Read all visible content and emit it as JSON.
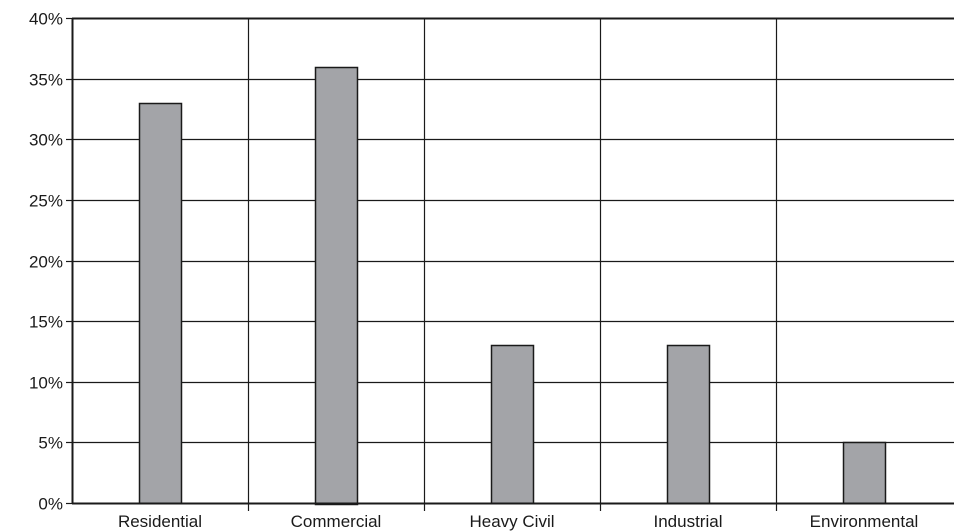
{
  "chart_data": {
    "type": "bar",
    "title": "",
    "xlabel": "",
    "ylabel": "",
    "categories": [
      "Residential",
      "Commercial",
      "Heavy Civil",
      "Industrial",
      "Environmental"
    ],
    "values": [
      33,
      36,
      13,
      13,
      5
    ],
    "value_unit": "%",
    "ylim": [
      0,
      40
    ],
    "yticks": [
      0,
      5,
      10,
      15,
      20,
      25,
      30,
      35,
      40
    ],
    "ytick_labels": [
      "0%",
      "5%",
      "10%",
      "15%",
      "20%",
      "25%",
      "30%",
      "35%",
      "40%"
    ],
    "grid": "horizontal lines at every tick, vertical separators between categories",
    "legend": "none",
    "colors": {
      "bar_fill": "#a3a4a8",
      "bar_stroke": "#1a1a1a",
      "grid": "#1a1a1a",
      "axis": "#1a1a1a"
    }
  }
}
